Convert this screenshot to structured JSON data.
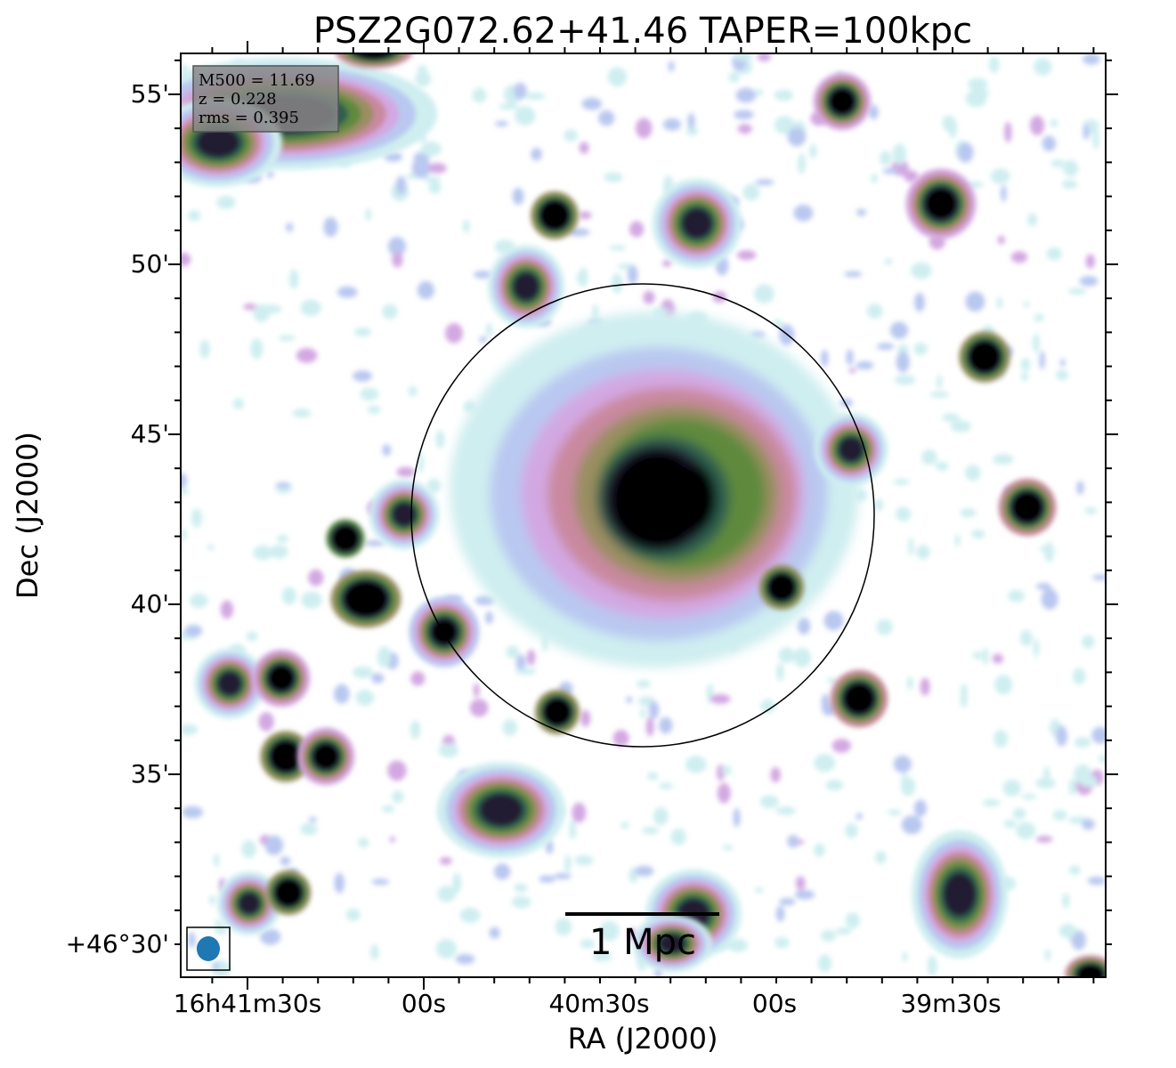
{
  "figure": {
    "title": "PSZ2G072.62+41.46 TAPER=100kpc",
    "info_box": {
      "line1": "M500 = 11.69",
      "line2": "z = 0.228",
      "line3": "rms = 0.395"
    },
    "x_axis": {
      "label": "RA (J2000)",
      "ticks": [
        "16h41m30s",
        "00s",
        "40m30s",
        "00s",
        "39m30s"
      ]
    },
    "y_axis": {
      "label": "Dec (J2000)",
      "ticks": [
        "55'",
        "50'",
        "45'",
        "40'",
        "35'",
        "+46°30'"
      ]
    },
    "scale_bar": {
      "label": "1 Mpc"
    },
    "beam": {
      "color": "#1f77b4"
    },
    "colormap": [
      "#ffffff",
      "#cfeef0",
      "#b9c8f0",
      "#d3a8e2",
      "#c9899f",
      "#9a8e62",
      "#5f8a3e",
      "#2f5f50",
      "#231a32",
      "#000000"
    ]
  }
}
